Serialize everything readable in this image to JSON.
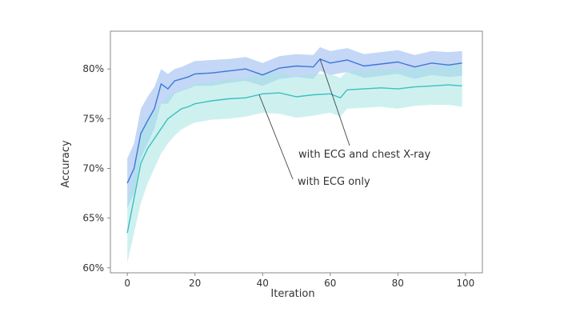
{
  "chart_data": {
    "type": "line",
    "xlabel": "Iteration",
    "ylabel": "Accuracy",
    "xlim": [
      -5,
      105
    ],
    "ylim": [
      59.5,
      83.8
    ],
    "x_ticks": [
      0,
      20,
      40,
      60,
      80,
      100
    ],
    "y_ticks": [
      {
        "value": 60,
        "label": "60%"
      },
      {
        "value": 65,
        "label": "65%"
      },
      {
        "value": 70,
        "label": "70%"
      },
      {
        "value": 75,
        "label": "75%"
      },
      {
        "value": 80,
        "label": "80%"
      }
    ],
    "grid": false,
    "series": [
      {
        "name": "with ECG and chest X-ray",
        "color": "#3b78d8",
        "band_color": "#9dbdf0",
        "x": [
          0,
          2,
          4,
          6,
          8,
          10,
          12,
          14,
          16,
          18,
          20,
          25,
          30,
          35,
          40,
          45,
          50,
          55,
          57,
          60,
          65,
          70,
          75,
          80,
          85,
          90,
          95,
          99
        ],
        "y": [
          68.5,
          70.0,
          73.5,
          74.8,
          76.0,
          78.5,
          78.0,
          78.8,
          79.0,
          79.2,
          79.5,
          79.6,
          79.8,
          80.0,
          79.4,
          80.1,
          80.3,
          80.2,
          81.0,
          80.6,
          80.9,
          80.3,
          80.5,
          80.7,
          80.2,
          80.6,
          80.4,
          80.6
        ],
        "lower": [
          66.0,
          67.5,
          71.0,
          72.5,
          74.0,
          76.5,
          76.5,
          77.5,
          77.8,
          78.0,
          78.3,
          78.3,
          78.6,
          78.8,
          78.3,
          79.0,
          79.2,
          79.0,
          79.8,
          79.4,
          79.7,
          79.1,
          79.3,
          79.5,
          79.0,
          79.4,
          79.2,
          79.3
        ],
        "upper": [
          71.0,
          72.5,
          76.0,
          77.2,
          78.2,
          80.0,
          79.5,
          80.0,
          80.2,
          80.5,
          80.8,
          80.9,
          81.0,
          81.2,
          80.6,
          81.3,
          81.5,
          81.4,
          82.2,
          81.8,
          82.1,
          81.5,
          81.7,
          81.9,
          81.4,
          81.8,
          81.7,
          81.8
        ]
      },
      {
        "name": "with ECG only",
        "color": "#3cbfbf",
        "band_color": "#a6e6e3",
        "x": [
          0,
          2,
          4,
          6,
          8,
          10,
          12,
          14,
          16,
          18,
          20,
          25,
          30,
          35,
          40,
          45,
          50,
          55,
          60,
          63,
          65,
          70,
          75,
          80,
          85,
          90,
          95,
          99
        ],
        "y": [
          63.5,
          67.0,
          70.5,
          72.0,
          73.0,
          74.0,
          75.0,
          75.5,
          76.0,
          76.2,
          76.5,
          76.8,
          77.0,
          77.1,
          77.5,
          77.6,
          77.2,
          77.4,
          77.5,
          77.1,
          77.9,
          78.0,
          78.1,
          78.0,
          78.2,
          78.3,
          78.4,
          78.3
        ],
        "lower": [
          60.5,
          63.5,
          66.5,
          68.5,
          70.0,
          71.5,
          72.5,
          73.3,
          73.9,
          74.3,
          74.6,
          74.9,
          75.0,
          75.2,
          75.6,
          75.5,
          75.1,
          75.3,
          75.6,
          75.2,
          76.0,
          76.1,
          76.2,
          76.0,
          76.3,
          76.4,
          76.4,
          76.2
        ],
        "upper": [
          66.5,
          70.0,
          73.5,
          75.0,
          75.8,
          76.5,
          77.3,
          77.6,
          78.0,
          78.1,
          78.5,
          78.7,
          79.0,
          79.1,
          79.4,
          79.7,
          79.3,
          79.5,
          79.5,
          79.1,
          79.8,
          79.9,
          80.0,
          80.0,
          80.1,
          80.2,
          80.4,
          80.4
        ]
      }
    ],
    "annotations": [
      {
        "text": "with ECG and chest X-ray",
        "series": 0,
        "point_x": 57,
        "point_y": 81.0
      },
      {
        "text": "with ECG only",
        "series": 1,
        "point_x": 39,
        "point_y": 77.4
      }
    ]
  }
}
